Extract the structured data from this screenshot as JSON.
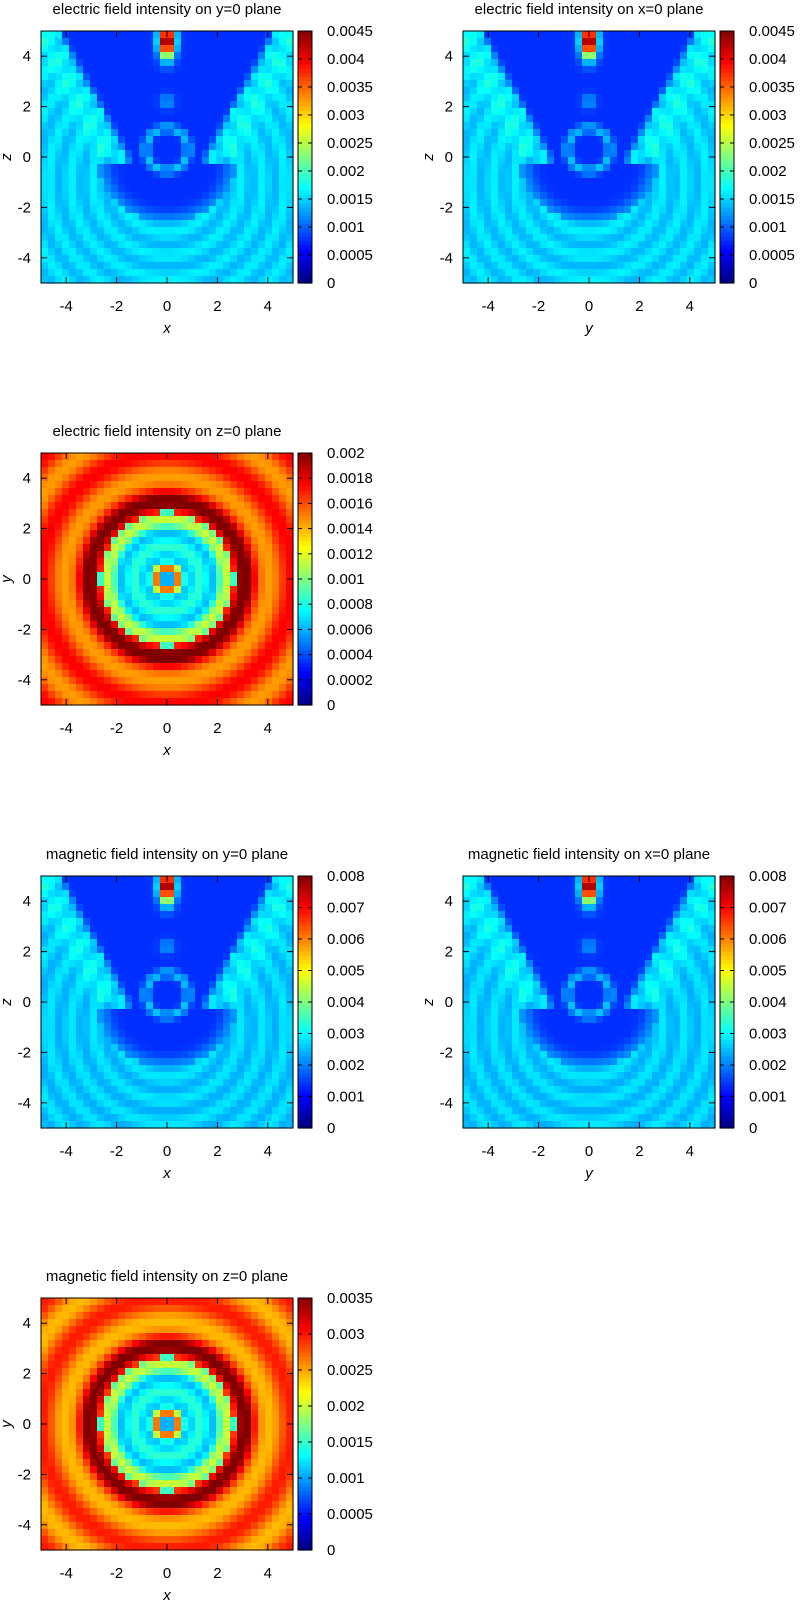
{
  "figure": {
    "colormap": [
      "#00007f",
      "#0000ff",
      "#007fff",
      "#00ffff",
      "#7fff7f",
      "#ffff00",
      "#ff7f00",
      "#ff0000",
      "#7f0000"
    ]
  },
  "chart_data": [
    {
      "id": "e-y0",
      "type": "heatmap",
      "title": "electric field intensity on y=0 plane",
      "xlabel": "x",
      "ylabel": "z",
      "xlim": [
        -5,
        5
      ],
      "ylim": [
        -5,
        5
      ],
      "xticks": [
        "-4",
        "-2",
        "0",
        "2",
        "4"
      ],
      "yticks": [
        "-4",
        "-2",
        "0",
        "2",
        "4"
      ],
      "colorbar_range": [
        0,
        0.0045
      ],
      "colorbar_ticks": [
        "0",
        "0.0005",
        "0.001",
        "0.0015",
        "0.002",
        "0.0025",
        "0.003",
        "0.0035",
        "0.004",
        "0.0045"
      ],
      "background_level": 0.0015,
      "pattern": "longitudinal",
      "hotspot_peak": 0.0045
    },
    {
      "id": "e-x0",
      "type": "heatmap",
      "title": "electric field intensity on x=0 plane",
      "xlabel": "y",
      "ylabel": "z",
      "xlim": [
        -5,
        5
      ],
      "ylim": [
        -5,
        5
      ],
      "xticks": [
        "-4",
        "-2",
        "0",
        "2",
        "4"
      ],
      "yticks": [
        "-4",
        "-2",
        "0",
        "2",
        "4"
      ],
      "colorbar_range": [
        0,
        0.0045
      ],
      "colorbar_ticks": [
        "0",
        "0.0005",
        "0.001",
        "0.0015",
        "0.002",
        "0.0025",
        "0.003",
        "0.0035",
        "0.004",
        "0.0045"
      ],
      "background_level": 0.0015,
      "pattern": "longitudinal",
      "hotspot_peak": 0.0045
    },
    {
      "id": "e-z0",
      "type": "heatmap",
      "title": "electric field intensity on z=0 plane",
      "xlabel": "x",
      "ylabel": "y",
      "xlim": [
        -5,
        5
      ],
      "ylim": [
        -5,
        5
      ],
      "xticks": [
        "-4",
        "-2",
        "0",
        "2",
        "4"
      ],
      "yticks": [
        "-4",
        "-2",
        "0",
        "2",
        "4"
      ],
      "colorbar_range": [
        0,
        0.002
      ],
      "colorbar_ticks": [
        "0",
        "0.0002",
        "0.0004",
        "0.0006",
        "0.0008",
        "0.001",
        "0.0012",
        "0.0014",
        "0.0016",
        "0.0018",
        "0.002"
      ],
      "background_level": 0.0016,
      "pattern": "radial",
      "ring_radius": 3.1,
      "ring_peak": 0.0019
    },
    {
      "id": "h-y0",
      "type": "heatmap",
      "title": "magnetic field intensity on y=0 plane",
      "xlabel": "x",
      "ylabel": "z",
      "xlim": [
        -5,
        5
      ],
      "ylim": [
        -5,
        5
      ],
      "xticks": [
        "-4",
        "-2",
        "0",
        "2",
        "4"
      ],
      "yticks": [
        "-4",
        "-2",
        "0",
        "2",
        "4"
      ],
      "colorbar_range": [
        0,
        0.008
      ],
      "colorbar_ticks": [
        "0",
        "0.001",
        "0.002",
        "0.003",
        "0.004",
        "0.005",
        "0.006",
        "0.007",
        "0.008"
      ],
      "background_level": 0.0026,
      "pattern": "longitudinal",
      "hotspot_peak": 0.008
    },
    {
      "id": "h-x0",
      "type": "heatmap",
      "title": "magnetic field intensity on x=0 plane",
      "xlabel": "y",
      "ylabel": "z",
      "xlim": [
        -5,
        5
      ],
      "ylim": [
        -5,
        5
      ],
      "xticks": [
        "-4",
        "-2",
        "0",
        "2",
        "4"
      ],
      "yticks": [
        "-4",
        "-2",
        "0",
        "2",
        "4"
      ],
      "colorbar_range": [
        0,
        0.008
      ],
      "colorbar_ticks": [
        "0",
        "0.001",
        "0.002",
        "0.003",
        "0.004",
        "0.005",
        "0.006",
        "0.007",
        "0.008"
      ],
      "background_level": 0.0026,
      "pattern": "longitudinal",
      "hotspot_peak": 0.008
    },
    {
      "id": "h-z0",
      "type": "heatmap",
      "title": "magnetic field intensity on z=0 plane",
      "xlabel": "x",
      "ylabel": "y",
      "xlim": [
        -5,
        5
      ],
      "ylim": [
        -5,
        5
      ],
      "xticks": [
        "-4",
        "-2",
        "0",
        "2",
        "4"
      ],
      "yticks": [
        "-4",
        "-2",
        "0",
        "2",
        "4"
      ],
      "colorbar_range": [
        0,
        0.0035
      ],
      "colorbar_ticks": [
        "0",
        "0.0005",
        "0.001",
        "0.0015",
        "0.002",
        "0.0025",
        "0.003",
        "0.0035"
      ],
      "background_level": 0.0027,
      "pattern": "radial",
      "ring_radius": 3.1,
      "ring_peak": 0.0033
    }
  ]
}
